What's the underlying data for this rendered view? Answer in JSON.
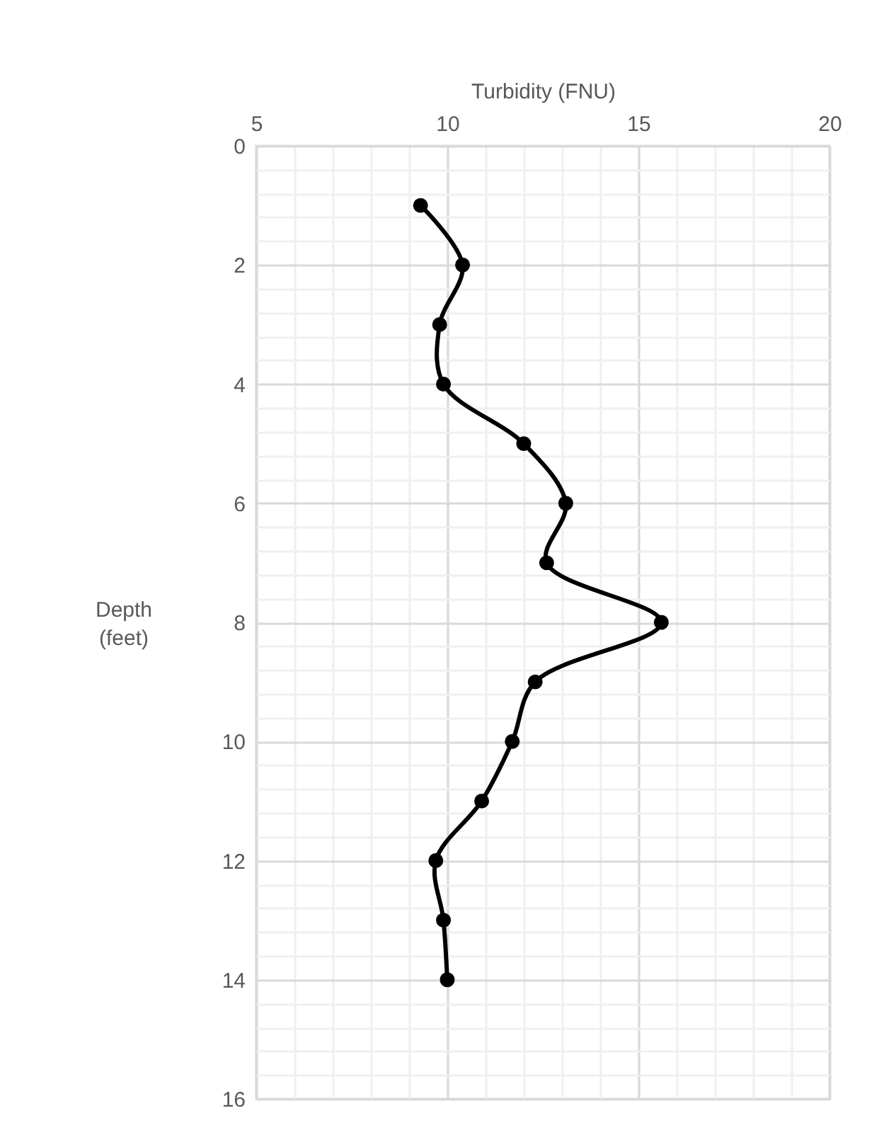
{
  "chart_data": {
    "type": "line",
    "xlabel": "Turbidity (FNU)",
    "ylabel": "Depth (feet)",
    "series": [
      {
        "color": "#000000",
        "x": [
          9.3,
          10.4,
          9.8,
          9.9,
          12.0,
          13.1,
          12.6,
          15.6,
          12.3,
          11.7,
          10.9,
          9.7,
          9.9,
          10.0
        ],
        "values": [
          1,
          2,
          3,
          4,
          5,
          6,
          7,
          8,
          9,
          10,
          11,
          12,
          13,
          14
        ]
      }
    ],
    "xlim": [
      5,
      20
    ],
    "xticks": [
      5,
      {
        "value": 6,
        "label": null
      },
      {
        "value": 7,
        "label": null
      },
      {
        "value": 8,
        "label": null
      },
      {
        "value": 9,
        "label": null
      },
      10,
      {
        "value": 11,
        "label": null
      },
      {
        "value": 12,
        "label": null
      },
      {
        "value": 13,
        "label": null
      },
      {
        "value": 14,
        "label": null
      },
      15,
      {
        "value": 16,
        "label": null
      },
      {
        "value": 17,
        "label": null
      },
      {
        "value": 18,
        "label": null
      },
      {
        "value": 19,
        "label": null
      },
      20
    ],
    "ylim": [
      16,
      0
    ],
    "yticks": [
      0,
      {
        "value": 0.4,
        "label": null
      },
      {
        "value": 0.8,
        "label": null
      },
      {
        "value": 1.2,
        "label": null
      },
      {
        "value": 1.6,
        "label": null
      },
      2,
      {
        "value": 2.4,
        "label": null
      },
      {
        "value": 2.8,
        "label": null
      },
      {
        "value": 3.2,
        "label": null
      },
      {
        "value": 3.6,
        "label": null
      },
      4,
      {
        "value": 4.4,
        "label": null
      },
      {
        "value": 4.8,
        "label": null
      },
      {
        "value": 5.2,
        "label": null
      },
      {
        "value": 5.6,
        "label": null
      },
      6,
      {
        "value": 6.4,
        "label": null
      },
      {
        "value": 6.8,
        "label": null
      },
      {
        "value": 7.2,
        "label": null
      },
      {
        "value": 7.6,
        "label": null
      },
      8,
      {
        "value": 8.4,
        "label": null
      },
      {
        "value": 8.8,
        "label": null
      },
      {
        "value": 9.2,
        "label": null
      },
      {
        "value": 9.6,
        "label": null
      },
      10,
      {
        "value": 10.4,
        "label": null
      },
      {
        "value": 10.8,
        "label": null
      },
      {
        "value": 11.2,
        "label": null
      },
      {
        "value": 11.6,
        "label": null
      },
      12,
      {
        "value": 12.4,
        "label": null
      },
      {
        "value": 12.8,
        "label": null
      },
      {
        "value": 13.2,
        "label": null
      },
      {
        "value": 13.6,
        "label": null
      },
      14,
      {
        "value": 14.4,
        "label": null
      },
      {
        "value": 14.8,
        "label": null
      },
      {
        "value": 15.2,
        "label": null
      },
      {
        "value": 15.6,
        "label": null
      },
      16
    ],
    "grid": true,
    "marker": "circle",
    "line_style": "solid"
  }
}
